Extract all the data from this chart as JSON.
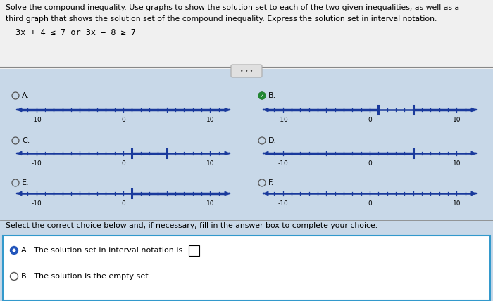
{
  "bg_color": "#c8d8e8",
  "line_color": "#1a3a9c",
  "title_line1": "Solve the compound inequality. Use graphs to show the solution set to each of the two given inequalities, as well as a",
  "title_line2": "third graph that shows the solution set of the compound inequality. Express the solution set in interval notation.",
  "inequality": "3x + 4 ≤ 7 or 3x − 8 ≥ 7",
  "bracket_val_1": 1,
  "bracket_val_2": 5,
  "xmin": -12,
  "xmax": 12,
  "tick_labels": [
    -10,
    0,
    10
  ],
  "bottom_text": "Select the correct choice below and, if necessary, fill in the answer box to complete your choice.",
  "choice_A": "A.  The solution set in interval notation is",
  "choice_B": "B.  The solution is the empty set.",
  "selected_B_option": true
}
